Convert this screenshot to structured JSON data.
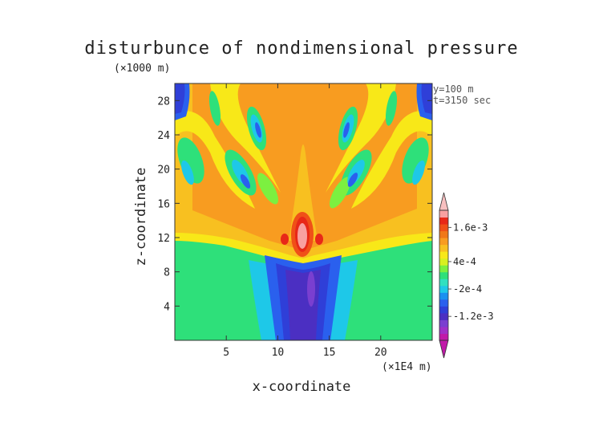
{
  "chart_data": {
    "type": "heatmap",
    "title": "disturbunce of nondimensional pressure",
    "xlabel": "x-coordinate",
    "ylabel": "z-coordinate",
    "x_unit": "(×1E4 m)",
    "z_unit": "(×1000 m)",
    "annotations": [
      "y=100 m",
      "t=3150 sec"
    ],
    "xlim": [
      0,
      25
    ],
    "ylim": [
      0,
      30
    ],
    "x_ticks": [
      5,
      10,
      15,
      20
    ],
    "y_ticks": [
      4,
      8,
      12,
      16,
      20,
      24,
      28
    ],
    "x_tick_labels": [
      "5",
      "10",
      "15",
      "20"
    ],
    "y_tick_labels": [
      "4",
      "8",
      "12",
      "16",
      "20",
      "24",
      "28"
    ],
    "colorbar": {
      "labels": [
        "1.6e-3",
        "4e-4",
        "-2e-4",
        "-1.2e-3"
      ],
      "colors": [
        "#c01aa8",
        "#a030c8",
        "#7a3fd0",
        "#4b2fc2",
        "#2f3fd8",
        "#2a60ee",
        "#1a90f0",
        "#1ec8e8",
        "#30e0c0",
        "#2ee07a",
        "#7cf040",
        "#d8f020",
        "#f8e818",
        "#f8c020",
        "#f89c20",
        "#f07818",
        "#f05018",
        "#e82818",
        "#f8a0a0"
      ]
    }
  }
}
